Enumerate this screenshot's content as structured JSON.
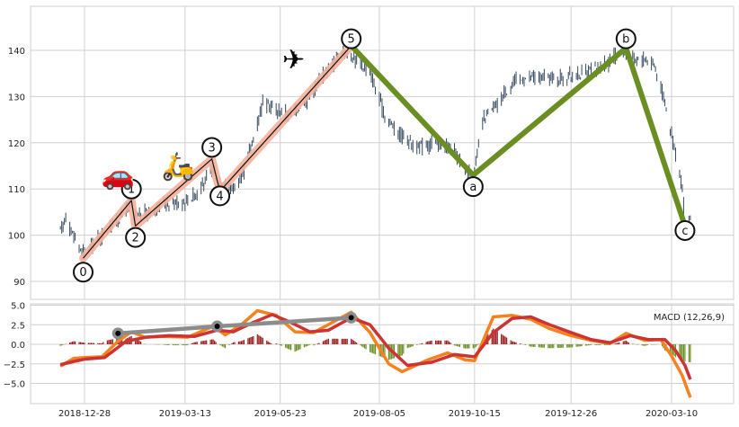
{
  "chart_data": [
    {
      "type": "candlestick",
      "title": "",
      "xlabel": "",
      "ylabel": "",
      "ylim": [
        86,
        147
      ],
      "yticks": [
        90,
        100,
        110,
        120,
        130,
        140
      ],
      "grid": true,
      "candle_color": "#34495e",
      "price_path": [
        [
          "2018-12-10",
          101
        ],
        [
          "2018-12-14",
          104
        ],
        [
          "2018-12-21",
          99
        ],
        [
          "2018-12-27",
          96
        ],
        [
          "2019-01-03",
          98
        ],
        [
          "2019-01-14",
          101
        ],
        [
          "2019-01-24",
          104
        ],
        [
          "2019-02-01",
          107
        ],
        [
          "2019-02-04",
          104
        ],
        [
          "2019-02-15",
          105
        ],
        [
          "2019-02-26",
          107
        ],
        [
          "2019-03-11",
          107
        ],
        [
          "2019-03-22",
          109
        ],
        [
          "2019-04-02",
          114
        ],
        [
          "2019-04-08",
          112
        ],
        [
          "2019-04-16",
          110
        ],
        [
          "2019-04-24",
          112
        ],
        [
          "2019-05-03",
          121
        ],
        [
          "2019-05-10",
          129
        ],
        [
          "2019-05-20",
          127
        ],
        [
          "2019-05-31",
          126
        ],
        [
          "2019-06-14",
          130
        ],
        [
          "2019-06-24",
          135
        ],
        [
          "2019-07-01",
          137
        ],
        [
          "2019-07-08",
          140
        ],
        [
          "2019-07-19",
          138
        ],
        [
          "2019-07-29",
          135
        ],
        [
          "2019-08-09",
          126
        ],
        [
          "2019-08-20",
          122
        ],
        [
          "2019-09-03",
          119
        ],
        [
          "2019-09-16",
          120
        ],
        [
          "2019-09-30",
          118
        ],
        [
          "2019-10-09",
          114
        ],
        [
          "2019-10-14",
          113
        ],
        [
          "2019-10-22",
          125
        ],
        [
          "2019-10-31",
          128
        ],
        [
          "2019-11-12",
          133
        ],
        [
          "2019-11-22",
          134
        ],
        [
          "2019-12-05",
          134
        ],
        [
          "2019-12-20",
          134
        ],
        [
          "2020-01-06",
          135
        ],
        [
          "2020-01-21",
          137
        ],
        [
          "2020-02-03",
          140
        ],
        [
          "2020-02-10",
          138
        ],
        [
          "2020-02-20",
          138
        ],
        [
          "2020-02-26",
          137
        ],
        [
          "2020-03-04",
          130
        ],
        [
          "2020-03-10",
          122
        ],
        [
          "2020-03-13",
          118
        ],
        [
          "2020-03-18",
          110
        ],
        [
          "2020-03-20",
          102
        ],
        [
          "2020-03-24",
          104
        ]
      ],
      "wave_points": [
        {
          "label": "0",
          "date": "2018-12-27",
          "price": 95,
          "label_price": 92
        },
        {
          "label": "1",
          "date": "2019-02-01",
          "price": 107.5,
          "label_price": 110
        },
        {
          "label": "2",
          "date": "2019-02-04",
          "price": 102,
          "label_price": 99.5
        },
        {
          "label": "3",
          "date": "2019-04-02",
          "price": 116.5,
          "label_price": 119
        },
        {
          "label": "4",
          "date": "2019-04-08",
          "price": 109.5,
          "label_price": 108.5
        },
        {
          "label": "5",
          "date": "2019-07-15",
          "price": 141,
          "label_price": 142.5
        },
        {
          "label": "a",
          "date": "2019-10-14",
          "price": 113,
          "label_price": 110.5
        },
        {
          "label": "b",
          "date": "2020-02-05",
          "price": 140.5,
          "label_price": 142.5
        },
        {
          "label": "c",
          "date": "2020-03-20",
          "price": 102,
          "label_price": 101
        }
      ],
      "impulse_color": "#f4b19c",
      "correction_color": "#6b8e23",
      "emoji_annotations": [
        {
          "symbol": "🚗",
          "date": "2019-01-22",
          "price": 111
        },
        {
          "symbol": "🛵",
          "date": "2019-03-08",
          "price": 113
        },
        {
          "symbol": "✈",
          "date": "2019-06-02",
          "price": 136
        }
      ]
    },
    {
      "type": "macd",
      "legend": "MACD (12,26,9)",
      "legend_position": "top-right",
      "ylim": [
        -6.8,
        5
      ],
      "yticks": [
        5.0,
        2.5,
        0.0,
        -2.5,
        -5.0
      ],
      "ytick_labels": [
        "5.0",
        "2.5",
        "0.0",
        "−2.5",
        "−5.0"
      ],
      "xticks": [
        "2018-12-28",
        "2019-03-13",
        "2019-05-23",
        "2019-08-05",
        "2019-10-15",
        "2019-12-26",
        "2020-03-10"
      ],
      "grid": true,
      "macd_color": "#f5821f",
      "signal_color": "#cc3333",
      "hist_pos_color": "#9b1b1b",
      "hist_neg_color": "#6b8e23",
      "macd_path": [
        [
          "2018-12-10",
          -2.8
        ],
        [
          "2018-12-20",
          -1.8
        ],
        [
          "2018-12-28",
          -1.7
        ],
        [
          "2019-01-10",
          -1.6
        ],
        [
          "2019-01-22",
          0.4
        ],
        [
          "2019-02-01",
          1.6
        ],
        [
          "2019-02-11",
          0.9
        ],
        [
          "2019-02-25",
          1.0
        ],
        [
          "2019-03-15",
          0.9
        ],
        [
          "2019-04-03",
          2.3
        ],
        [
          "2019-04-12",
          1.2
        ],
        [
          "2019-04-24",
          2.5
        ],
        [
          "2019-05-06",
          4.3
        ],
        [
          "2019-05-20",
          3.7
        ],
        [
          "2019-06-03",
          1.6
        ],
        [
          "2019-06-17",
          1.5
        ],
        [
          "2019-07-01",
          2.8
        ],
        [
          "2019-07-15",
          4.1
        ],
        [
          "2019-07-29",
          1.5
        ],
        [
          "2019-08-12",
          -2.5
        ],
        [
          "2019-08-22",
          -3.5
        ],
        [
          "2019-09-10",
          -2.0
        ],
        [
          "2019-09-25",
          -1.1
        ],
        [
          "2019-10-08",
          -2.0
        ],
        [
          "2019-10-15",
          -2.1
        ],
        [
          "2019-10-29",
          3.5
        ],
        [
          "2019-11-12",
          3.7
        ],
        [
          "2019-11-26",
          3.2
        ],
        [
          "2019-12-10",
          2.0
        ],
        [
          "2019-12-26",
          1.1
        ],
        [
          "2020-01-10",
          0.5
        ],
        [
          "2020-01-24",
          0.1
        ],
        [
          "2020-02-05",
          1.4
        ],
        [
          "2020-02-19",
          0.5
        ],
        [
          "2020-03-02",
          0.6
        ],
        [
          "2020-03-10",
          -1.5
        ],
        [
          "2020-03-18",
          -4.0
        ],
        [
          "2020-03-24",
          -6.8
        ]
      ],
      "signal_path": [
        [
          "2018-12-10",
          -2.6
        ],
        [
          "2018-12-20",
          -2.2
        ],
        [
          "2018-12-28",
          -1.9
        ],
        [
          "2019-01-12",
          -1.7
        ],
        [
          "2019-01-28",
          0.4
        ],
        [
          "2019-02-12",
          0.9
        ],
        [
          "2019-03-01",
          1.1
        ],
        [
          "2019-03-20",
          1.0
        ],
        [
          "2019-04-06",
          1.8
        ],
        [
          "2019-04-18",
          1.6
        ],
        [
          "2019-05-03",
          2.8
        ],
        [
          "2019-05-17",
          3.8
        ],
        [
          "2019-05-31",
          2.8
        ],
        [
          "2019-06-14",
          1.6
        ],
        [
          "2019-06-28",
          1.8
        ],
        [
          "2019-07-15",
          3.4
        ],
        [
          "2019-07-29",
          2.5
        ],
        [
          "2019-08-12",
          -0.5
        ],
        [
          "2019-08-26",
          -2.7
        ],
        [
          "2019-09-13",
          -2.3
        ],
        [
          "2019-09-30",
          -1.3
        ],
        [
          "2019-10-15",
          -1.6
        ],
        [
          "2019-10-29",
          1.5
        ],
        [
          "2019-11-12",
          3.3
        ],
        [
          "2019-11-26",
          3.5
        ],
        [
          "2019-12-10",
          2.5
        ],
        [
          "2019-12-26",
          1.5
        ],
        [
          "2020-01-10",
          0.6
        ],
        [
          "2020-01-24",
          0.2
        ],
        [
          "2020-02-08",
          1.1
        ],
        [
          "2020-02-22",
          0.6
        ],
        [
          "2020-03-05",
          0.6
        ],
        [
          "2020-03-13",
          -0.8
        ],
        [
          "2020-03-20",
          -2.7
        ],
        [
          "2020-03-24",
          -4.5
        ]
      ],
      "trend_points": [
        {
          "date": "2019-01-22",
          "value": 1.4
        },
        {
          "date": "2019-04-06",
          "value": 2.3
        },
        {
          "date": "2019-07-15",
          "value": 3.4
        }
      ],
      "trend_color": "#8c8c8c"
    }
  ]
}
